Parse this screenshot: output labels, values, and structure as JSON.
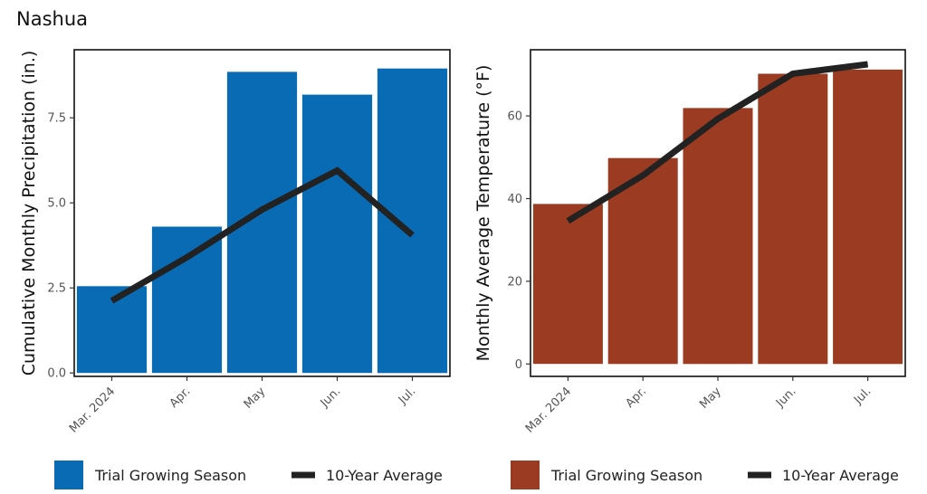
{
  "title": "Nashua",
  "chart_data": [
    {
      "type": "bar",
      "categories": [
        "Mar. 2024",
        "Apr.",
        "May",
        "Jun.",
        "Jul."
      ],
      "series": [
        {
          "name": "Trial Growing Season",
          "kind": "bar",
          "color": "#0a6bb5",
          "values": [
            2.55,
            4.3,
            8.85,
            8.18,
            8.95
          ]
        },
        {
          "name": "10-Year Average",
          "kind": "line",
          "color": "#222222",
          "values": [
            2.12,
            3.4,
            4.8,
            5.95,
            4.05
          ]
        }
      ],
      "xlabel": "",
      "ylabel": "Cumulative Monthly Precipitation (in.)",
      "ylim": [
        -0.1,
        9.5
      ],
      "yticks": [
        0.0,
        2.5,
        5.0,
        7.5
      ],
      "ytick_labels": [
        "0.0",
        "2.5",
        "5.0",
        "7.5"
      ],
      "grid": false,
      "legend": "bottom",
      "legend_items": [
        {
          "label": "Trial Growing Season",
          "color": "#0a6bb5",
          "kind": "bar"
        },
        {
          "label": "10-Year Average",
          "color": "#222222",
          "kind": "line"
        }
      ]
    },
    {
      "type": "bar",
      "categories": [
        "Mar. 2024",
        "Apr.",
        "May",
        "Jun.",
        "Jul."
      ],
      "series": [
        {
          "name": "Trial Growing Season",
          "kind": "bar",
          "color": "#9b3b22",
          "values": [
            38.7,
            49.8,
            61.9,
            70.2,
            71.2
          ]
        },
        {
          "name": "10-Year Average",
          "kind": "line",
          "color": "#222222",
          "values": [
            34.6,
            45.6,
            59.3,
            70.2,
            72.5
          ]
        }
      ],
      "xlabel": "",
      "ylabel": "Monthly Average Temperature  (°F)",
      "ylim": [
        -3,
        76
      ],
      "yticks": [
        0,
        20,
        40,
        60
      ],
      "ytick_labels": [
        "0",
        "20",
        "40",
        "60"
      ],
      "grid": false,
      "legend": "bottom",
      "legend_items": [
        {
          "label": "Trial Growing Season",
          "color": "#9b3b22",
          "kind": "bar"
        },
        {
          "label": "10-Year Average",
          "color": "#222222",
          "kind": "line"
        }
      ]
    }
  ]
}
